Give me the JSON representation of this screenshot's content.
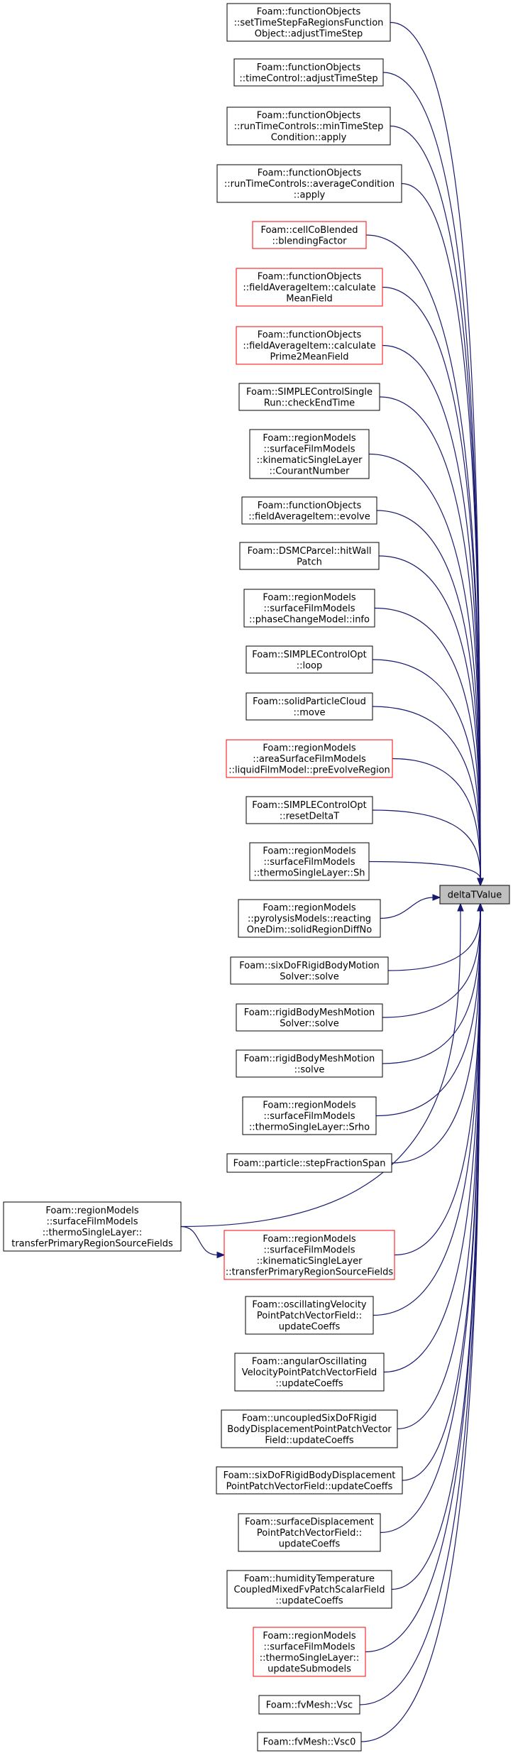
{
  "target": {
    "id": "target",
    "label": [
      "deltaTValue"
    ]
  },
  "nodes": [
    {
      "id": "n1",
      "label": [
        "Foam::functionObjects",
        "::setTimeStepFaRegionsFunction",
        "Object::adjustTimeStep"
      ],
      "red": false
    },
    {
      "id": "n2",
      "label": [
        "Foam::functionObjects",
        "::timeControl::adjustTimeStep"
      ],
      "red": false
    },
    {
      "id": "n3",
      "label": [
        "Foam::functionObjects",
        "::runTimeControls::minTimeStep",
        "Condition::apply"
      ],
      "red": false
    },
    {
      "id": "n4",
      "label": [
        "Foam::functionObjects",
        "::runTimeControls::averageCondition",
        "::apply"
      ],
      "red": false
    },
    {
      "id": "n5",
      "label": [
        "Foam::cellCoBlended",
        "::blendingFactor"
      ],
      "red": true
    },
    {
      "id": "n6",
      "label": [
        "Foam::functionObjects",
        "::fieldAverageItem::calculate",
        "MeanField"
      ],
      "red": true
    },
    {
      "id": "n7",
      "label": [
        "Foam::functionObjects",
        "::fieldAverageItem::calculate",
        "Prime2MeanField"
      ],
      "red": true
    },
    {
      "id": "n8",
      "label": [
        "Foam::SIMPLEControlSingle",
        "Run::checkEndTime"
      ],
      "red": false
    },
    {
      "id": "n9",
      "label": [
        "Foam::regionModels",
        "::surfaceFilmModels",
        "::kinematicSingleLayer",
        "::CourantNumber"
      ],
      "red": false
    },
    {
      "id": "n10",
      "label": [
        "Foam::functionObjects",
        "::fieldAverageItem::evolve"
      ],
      "red": false
    },
    {
      "id": "n11",
      "label": [
        "Foam::DSMCParcel::hitWall",
        "Patch"
      ],
      "red": false
    },
    {
      "id": "n12",
      "label": [
        "Foam::regionModels",
        "::surfaceFilmModels",
        "::phaseChangeModel::info"
      ],
      "red": false
    },
    {
      "id": "n13",
      "label": [
        "Foam::SIMPLEControlOpt",
        "::loop"
      ],
      "red": false
    },
    {
      "id": "n14",
      "label": [
        "Foam::solidParticleCloud",
        "::move"
      ],
      "red": false
    },
    {
      "id": "n15",
      "label": [
        "Foam::regionModels",
        "::areaSurfaceFilmModels",
        "::liquidFilmModel::preEvolveRegion"
      ],
      "red": true
    },
    {
      "id": "n16",
      "label": [
        "Foam::SIMPLEControlOpt",
        "::resetDeltaT"
      ],
      "red": false
    },
    {
      "id": "n17",
      "label": [
        "Foam::regionModels",
        "::surfaceFilmModels",
        "::thermoSingleLayer::Sh"
      ],
      "red": false
    },
    {
      "id": "n18",
      "label": [
        "Foam::regionModels",
        "::pyrolysisModels::reacting",
        "OneDim::solidRegionDiffNo"
      ],
      "red": false
    },
    {
      "id": "n19",
      "label": [
        "Foam::sixDoFRigidBodyMotion",
        "Solver::solve"
      ],
      "red": false
    },
    {
      "id": "n20",
      "label": [
        "Foam::rigidBodyMeshMotion",
        "Solver::solve"
      ],
      "red": false
    },
    {
      "id": "n21",
      "label": [
        "Foam::rigidBodyMeshMotion",
        "::solve"
      ],
      "red": false
    },
    {
      "id": "n22",
      "label": [
        "Foam::regionModels",
        "::surfaceFilmModels",
        "::thermoSingleLayer::Srho"
      ],
      "red": false
    },
    {
      "id": "n23",
      "label": [
        "Foam::particle::stepFractionSpan"
      ],
      "red": false
    },
    {
      "id": "n24",
      "label": [
        "Foam::regionModels",
        "::surfaceFilmModels",
        "::kinematicSingleLayer",
        "::transferPrimaryRegionSourceFields"
      ],
      "red": true
    },
    {
      "id": "n25",
      "label": [
        "Foam::oscillatingVelocity",
        "PointPatchVectorField::",
        "updateCoeffs"
      ],
      "red": false
    },
    {
      "id": "n26",
      "label": [
        "Foam::angularOscillating",
        "VelocityPointPatchVectorField",
        "::updateCoeffs"
      ],
      "red": false
    },
    {
      "id": "n27",
      "label": [
        "Foam::uncoupledSixDoFRigid",
        "BodyDisplacementPointPatchVector",
        "Field::updateCoeffs"
      ],
      "red": false
    },
    {
      "id": "n28",
      "label": [
        "Foam::sixDoFRigidBodyDisplacement",
        "PointPatchVectorField::updateCoeffs"
      ],
      "red": false
    },
    {
      "id": "n29",
      "label": [
        "Foam::surfaceDisplacement",
        "PointPatchVectorField::",
        "updateCoeffs"
      ],
      "red": false
    },
    {
      "id": "n30",
      "label": [
        "Foam::humidityTemperature",
        "CoupledMixedFvPatchScalarField",
        "::updateCoeffs"
      ],
      "red": false
    },
    {
      "id": "n31",
      "label": [
        "Foam::regionModels",
        "::surfaceFilmModels",
        "::thermoSingleLayer::",
        "updateSubmodels"
      ],
      "red": true
    },
    {
      "id": "n32",
      "label": [
        "Foam::fvMesh::Vsc"
      ],
      "red": false
    },
    {
      "id": "n33",
      "label": [
        "Foam::fvMesh::Vsc0"
      ],
      "red": false
    },
    {
      "id": "n34",
      "label": [
        "Foam::regionModels",
        "::surfaceFilmModels",
        "::thermoSingleLayer::",
        "transferPrimaryRegionSourceFields"
      ],
      "red": false
    }
  ],
  "edges": [
    [
      "n1",
      "target"
    ],
    [
      "n2",
      "target"
    ],
    [
      "n3",
      "target"
    ],
    [
      "n4",
      "target"
    ],
    [
      "n5",
      "target"
    ],
    [
      "n6",
      "target"
    ],
    [
      "n7",
      "target"
    ],
    [
      "n8",
      "target"
    ],
    [
      "n9",
      "target"
    ],
    [
      "n10",
      "target"
    ],
    [
      "n11",
      "target"
    ],
    [
      "n12",
      "target"
    ],
    [
      "n13",
      "target"
    ],
    [
      "n14",
      "target"
    ],
    [
      "n15",
      "target"
    ],
    [
      "n16",
      "target"
    ],
    [
      "n17",
      "target"
    ],
    [
      "n18",
      "target"
    ],
    [
      "n19",
      "target"
    ],
    [
      "n20",
      "target"
    ],
    [
      "n21",
      "target"
    ],
    [
      "n22",
      "target"
    ],
    [
      "n23",
      "target"
    ],
    [
      "n24",
      "target"
    ],
    [
      "n25",
      "target"
    ],
    [
      "n26",
      "target"
    ],
    [
      "n27",
      "target"
    ],
    [
      "n28",
      "target"
    ],
    [
      "n29",
      "target"
    ],
    [
      "n30",
      "target"
    ],
    [
      "n31",
      "target"
    ],
    [
      "n32",
      "target"
    ],
    [
      "n33",
      "target"
    ],
    [
      "n34",
      "target"
    ],
    [
      "n34",
      "n24"
    ]
  ]
}
